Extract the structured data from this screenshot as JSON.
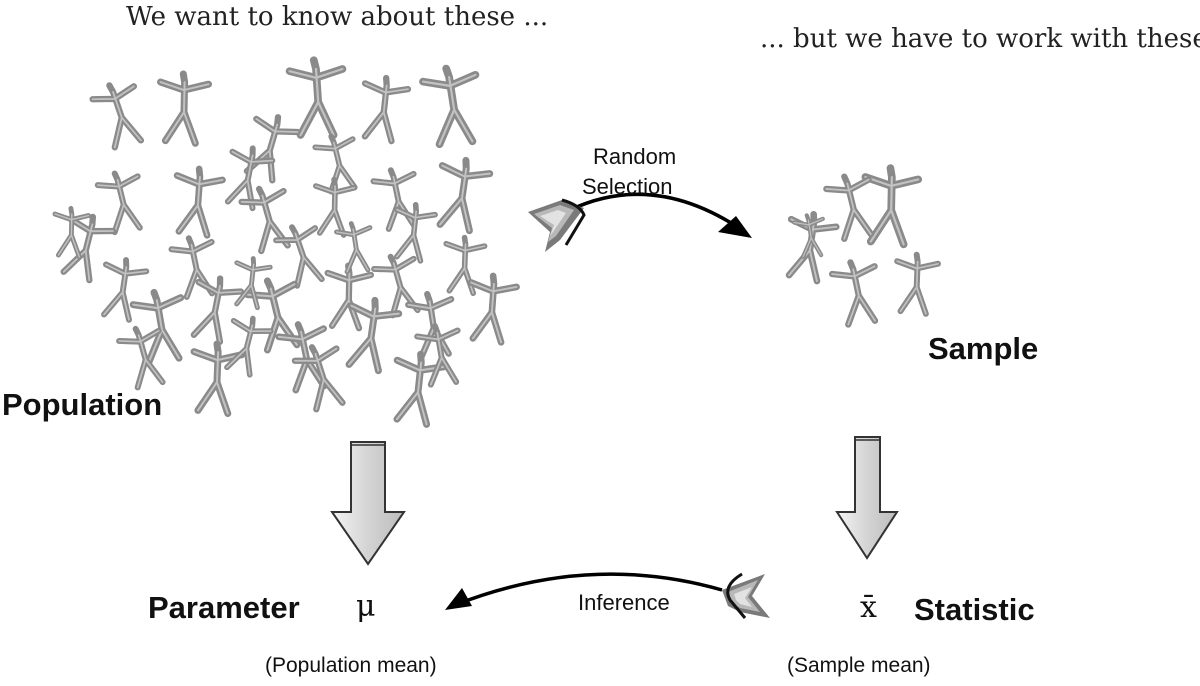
{
  "top_left_caption": "We want to know about these ...",
  "top_right_caption": "... but we have to work with these",
  "random_selection": {
    "line1": "Random",
    "line2": "Selection"
  },
  "population_label": "Population",
  "sample_label": "Sample",
  "parameter": {
    "label": "Parameter",
    "symbol": "μ",
    "caption": "(Population mean)"
  },
  "statistic": {
    "label": "Statistic",
    "symbol": "x̄",
    "caption": "(Sample mean)"
  },
  "inference_label": "Inference",
  "population_figure_count": 38,
  "sample_figure_count": 6
}
